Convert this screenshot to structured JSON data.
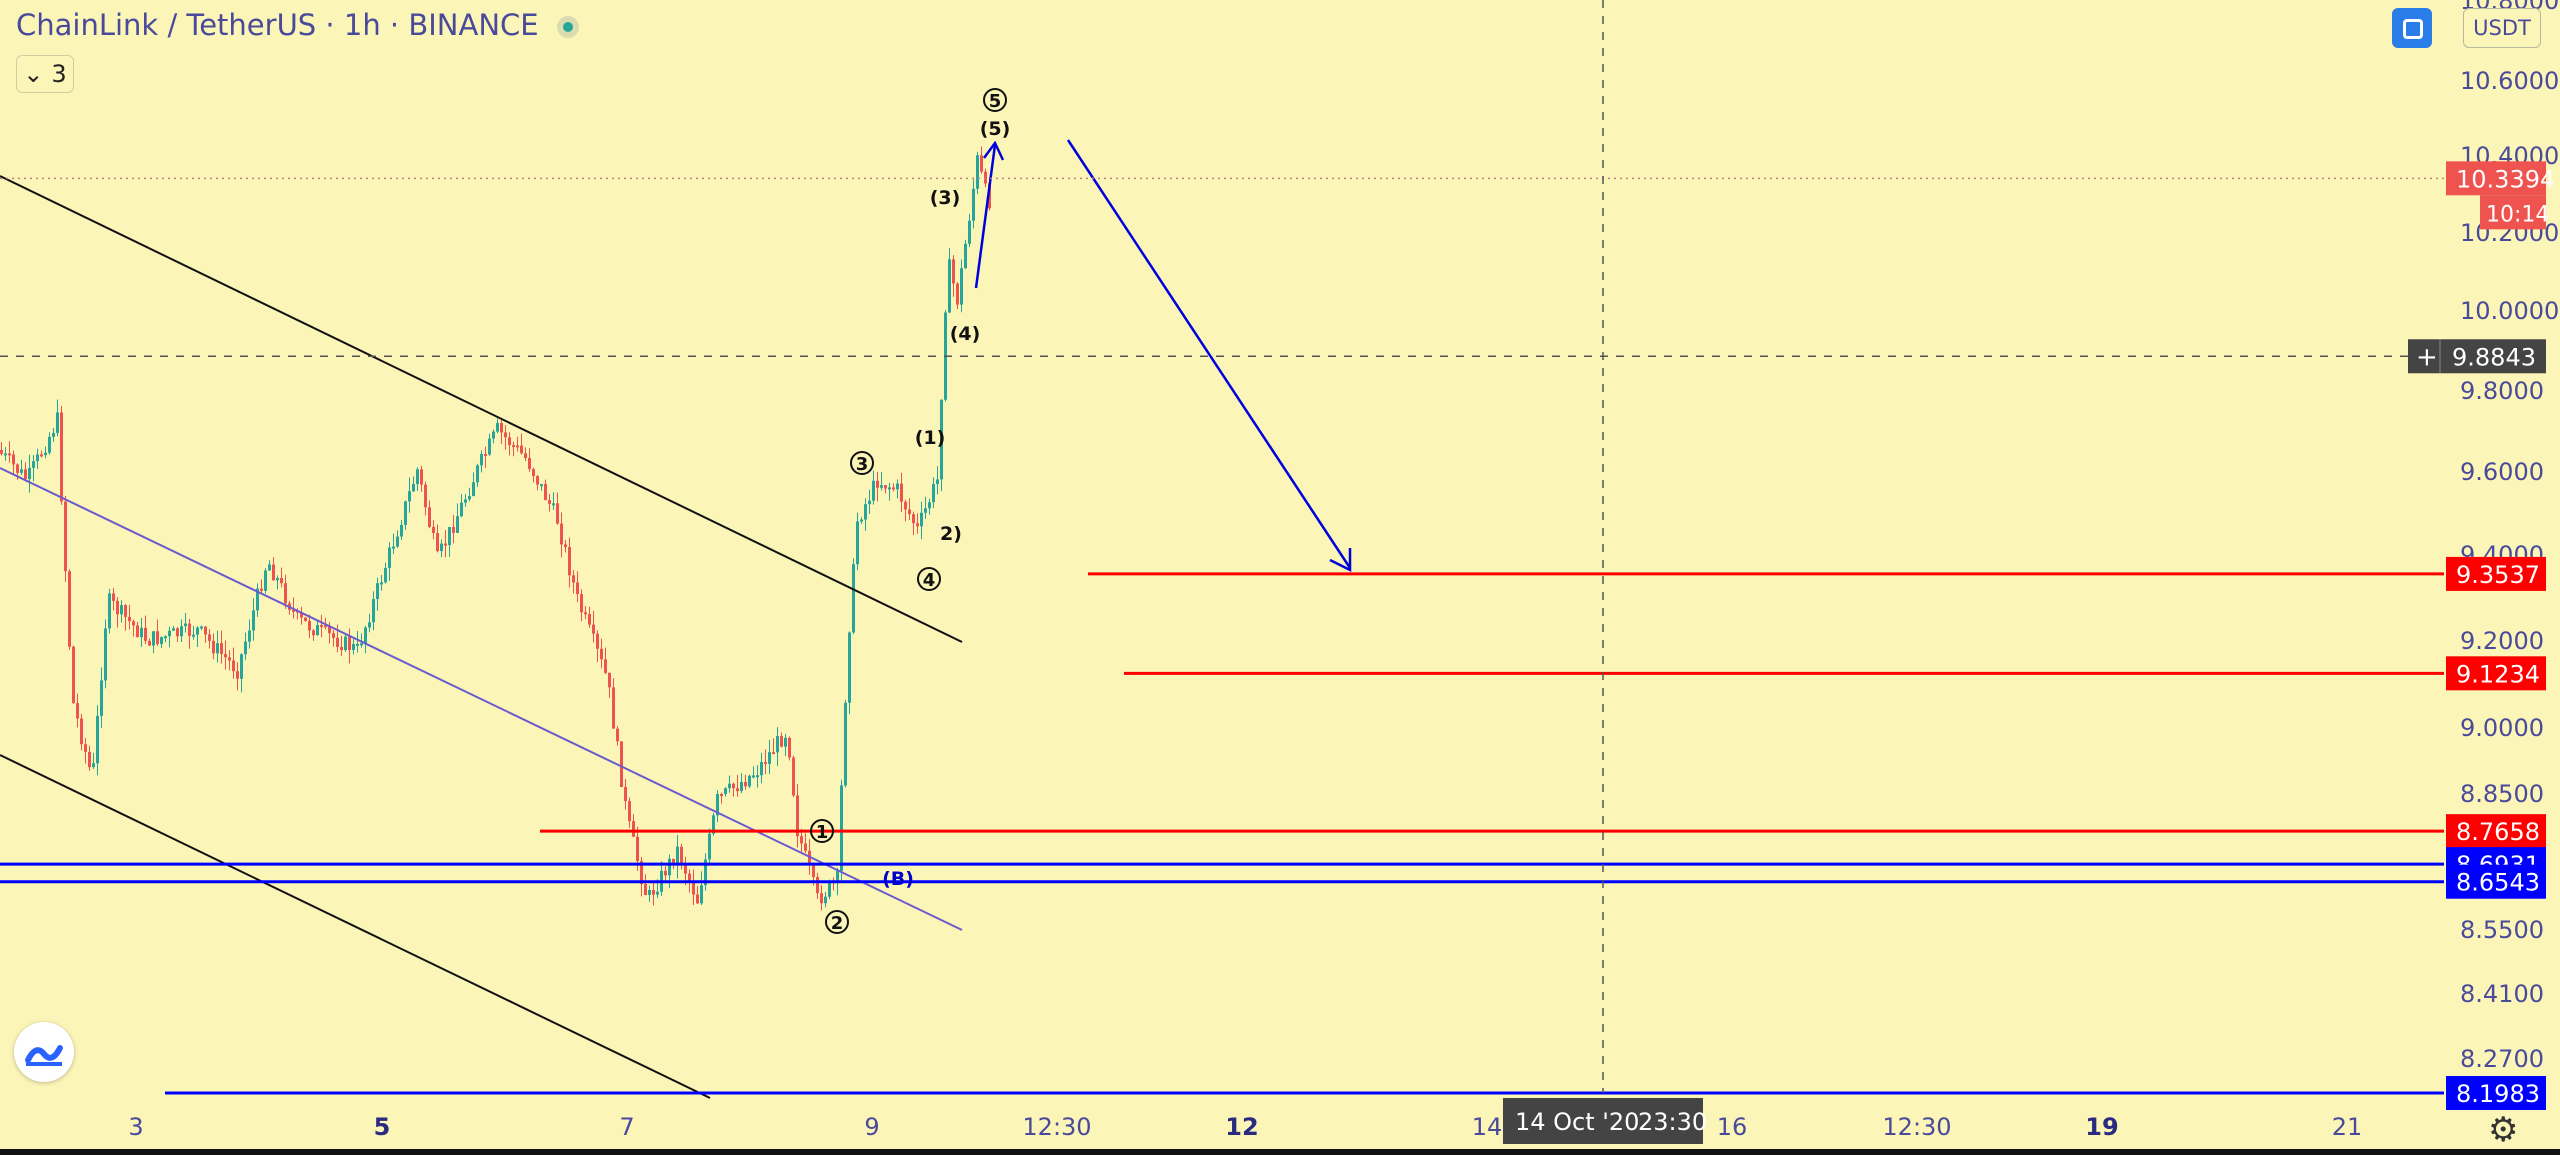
{
  "header": {
    "symbol": "ChainLink / TetherUS · 1h · BINANCE",
    "indicator_count": "3",
    "currency": "USDT",
    "realtime_icon": "realtime-button-icon",
    "collapse_icon": "chevron-down-icon"
  },
  "chart_data": {
    "type": "candlestick",
    "price_axis": {
      "range": [
        8.16,
        10.84
      ],
      "ticks": [
        "10.8000",
        "10.6000",
        "10.4000",
        "10.2000",
        "10.0000",
        "9.8000",
        "9.6000",
        "9.4000",
        "9.2000",
        "9.0000",
        "8.8500",
        "8.5500",
        "8.4100",
        "8.2700"
      ],
      "tick_values": [
        10.8,
        10.6,
        10.4,
        10.2,
        10.0,
        9.8,
        9.6,
        9.4,
        9.2,
        9.0,
        8.85,
        8.55,
        8.41,
        8.27
      ]
    },
    "time_axis": {
      "ticks": [
        "3",
        "5",
        "7",
        "9",
        "12:30",
        "12",
        "14",
        "16",
        "12:30",
        "19",
        "21"
      ],
      "bold": [
        false,
        true,
        false,
        false,
        false,
        true,
        false,
        false,
        false,
        true,
        false
      ]
    },
    "last_price": {
      "value": "10.3394",
      "countdown": "10:14",
      "color": "#ef5350"
    },
    "crosshair": {
      "price": "9.8843",
      "date": "14 Oct '20",
      "time": "23:30",
      "plus_icon": "plus-icon"
    },
    "levels": [
      {
        "value": "9.3537",
        "color": "#ff0000"
      },
      {
        "value": "9.1234",
        "color": "#ff0000"
      },
      {
        "value": "8.7658",
        "color": "#ff0000"
      },
      {
        "value": "8.6931",
        "color": "#0000ff"
      },
      {
        "value": "8.6543",
        "color": "#0000ff"
      },
      {
        "value": "8.1983",
        "color": "#0000ff"
      }
    ],
    "wave_labels": [
      "5",
      "(5)",
      "(3)",
      "(4)",
      "(1)",
      "3",
      "2)",
      "4",
      "1",
      "2",
      "(B)"
    ],
    "colors": {
      "up": "#26a69a",
      "down": "#ef5350",
      "background": "#fbf5b8",
      "axis_text": "#4a4a9a"
    }
  },
  "footer": {
    "logo_icon": "tradingview-logo-icon",
    "settings_icon": "gear-icon"
  }
}
